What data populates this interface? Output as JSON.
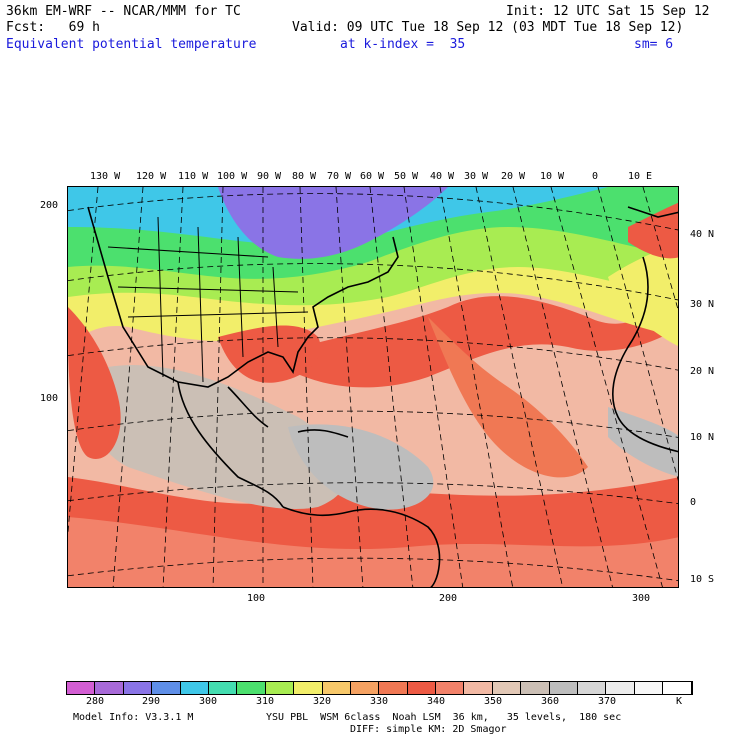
{
  "header": {
    "line1_left": "36km EM-WRF -- NCAR/MMM for TC",
    "line1_right": "Init: 12 UTC Sat 15 Sep 12",
    "line2_left": "Fcst:   69 h",
    "line2_right": "Valid: 09 UTC Tue 18 Sep 12 (03 MDT Tue 18 Sep 12)",
    "field": "Equivalent potential temperature",
    "level": "at k-index =  35",
    "smoothing": "sm= 6"
  },
  "longitude_labels": [
    "130 W",
    "120 W",
    "110 W",
    "100 W",
    "90 W",
    "80 W",
    "70 W",
    "60 W",
    "50 W",
    "40 W",
    "30 W",
    "20 W",
    "10 W",
    "0",
    "10 E"
  ],
  "latitude_labels": [
    "40 N",
    "30 N",
    "20 N",
    "10 N",
    "0",
    "10 S"
  ],
  "grid_labels_y": [
    "200",
    "100"
  ],
  "grid_labels_x": [
    "100",
    "200",
    "300"
  ],
  "colorbar": {
    "colors": [
      "#d35ed3",
      "#a86ad8",
      "#8a74e6",
      "#5f8fe8",
      "#3fc7e8",
      "#44ddb0",
      "#4ce06e",
      "#a8ec52",
      "#f2ee6a",
      "#f7c86a",
      "#f5a262",
      "#f07854",
      "#ed5a44",
      "#f2826a",
      "#f2b9a4",
      "#e2c8b6",
      "#cbbfb5",
      "#bdbdbd",
      "#d6d6d6",
      "#ececec",
      "#f7f7f7",
      "#ffffff"
    ],
    "labels": [
      "280",
      "290",
      "300",
      "310",
      "320",
      "330",
      "340",
      "350",
      "360",
      "370",
      "K"
    ]
  },
  "footer": {
    "model_info": "Model Info: V3.3.1 M",
    "physics": "YSU PBL  WSM 6class  Noah LSM  36 km,   35 levels,  180 sec",
    "diffusion": "DIFF: simple KM: 2D Smagor"
  }
}
